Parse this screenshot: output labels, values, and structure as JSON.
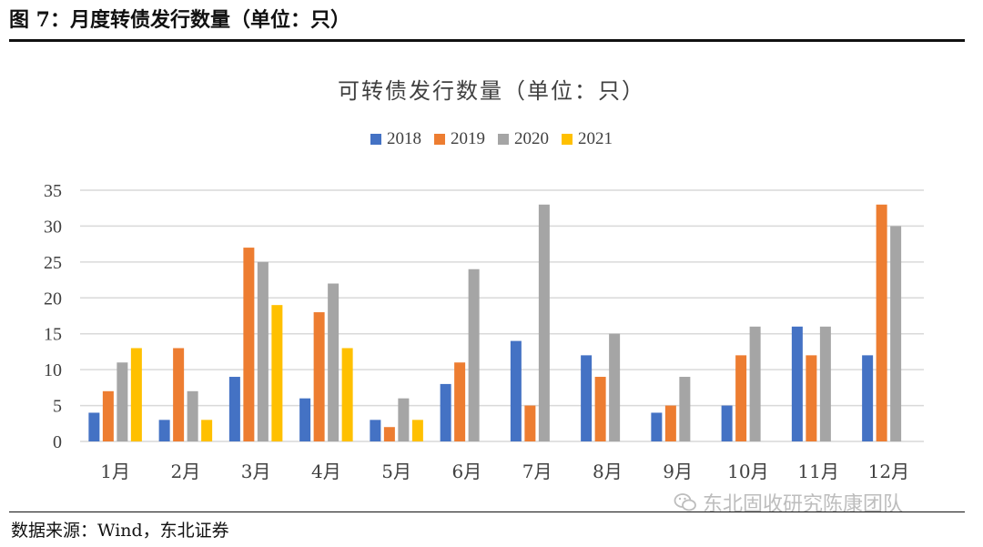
{
  "figure": {
    "header": "图 7：月度转债发行数量（单位：只）",
    "source": "数据来源：Wind，东北证券",
    "watermark": "东北固收研究陈康团队",
    "watermark_icon": "wechat-icon"
  },
  "chart_data": {
    "type": "bar",
    "title": "可转债发行数量（单位：只）",
    "xlabel": "",
    "ylabel": "",
    "ylim": [
      0,
      35
    ],
    "yticks": [
      0,
      5,
      10,
      15,
      20,
      25,
      30,
      35
    ],
    "grid": true,
    "legend_position": "top-center",
    "categories": [
      "1月",
      "2月",
      "3月",
      "4月",
      "5月",
      "6月",
      "7月",
      "8月",
      "9月",
      "10月",
      "11月",
      "12月"
    ],
    "series": [
      {
        "name": "2018",
        "color": "#4472C4",
        "values": [
          4,
          3,
          9,
          6,
          3,
          8,
          14,
          12,
          4,
          5,
          16,
          12
        ]
      },
      {
        "name": "2019",
        "color": "#ED7D31",
        "values": [
          7,
          13,
          27,
          18,
          2,
          11,
          5,
          9,
          5,
          12,
          12,
          33
        ]
      },
      {
        "name": "2020",
        "color": "#A5A5A5",
        "values": [
          11,
          7,
          25,
          22,
          6,
          24,
          33,
          15,
          9,
          16,
          16,
          30
        ]
      },
      {
        "name": "2021",
        "color": "#FFC000",
        "values": [
          13,
          3,
          19,
          13,
          3,
          null,
          null,
          null,
          null,
          null,
          null,
          null
        ]
      }
    ]
  }
}
